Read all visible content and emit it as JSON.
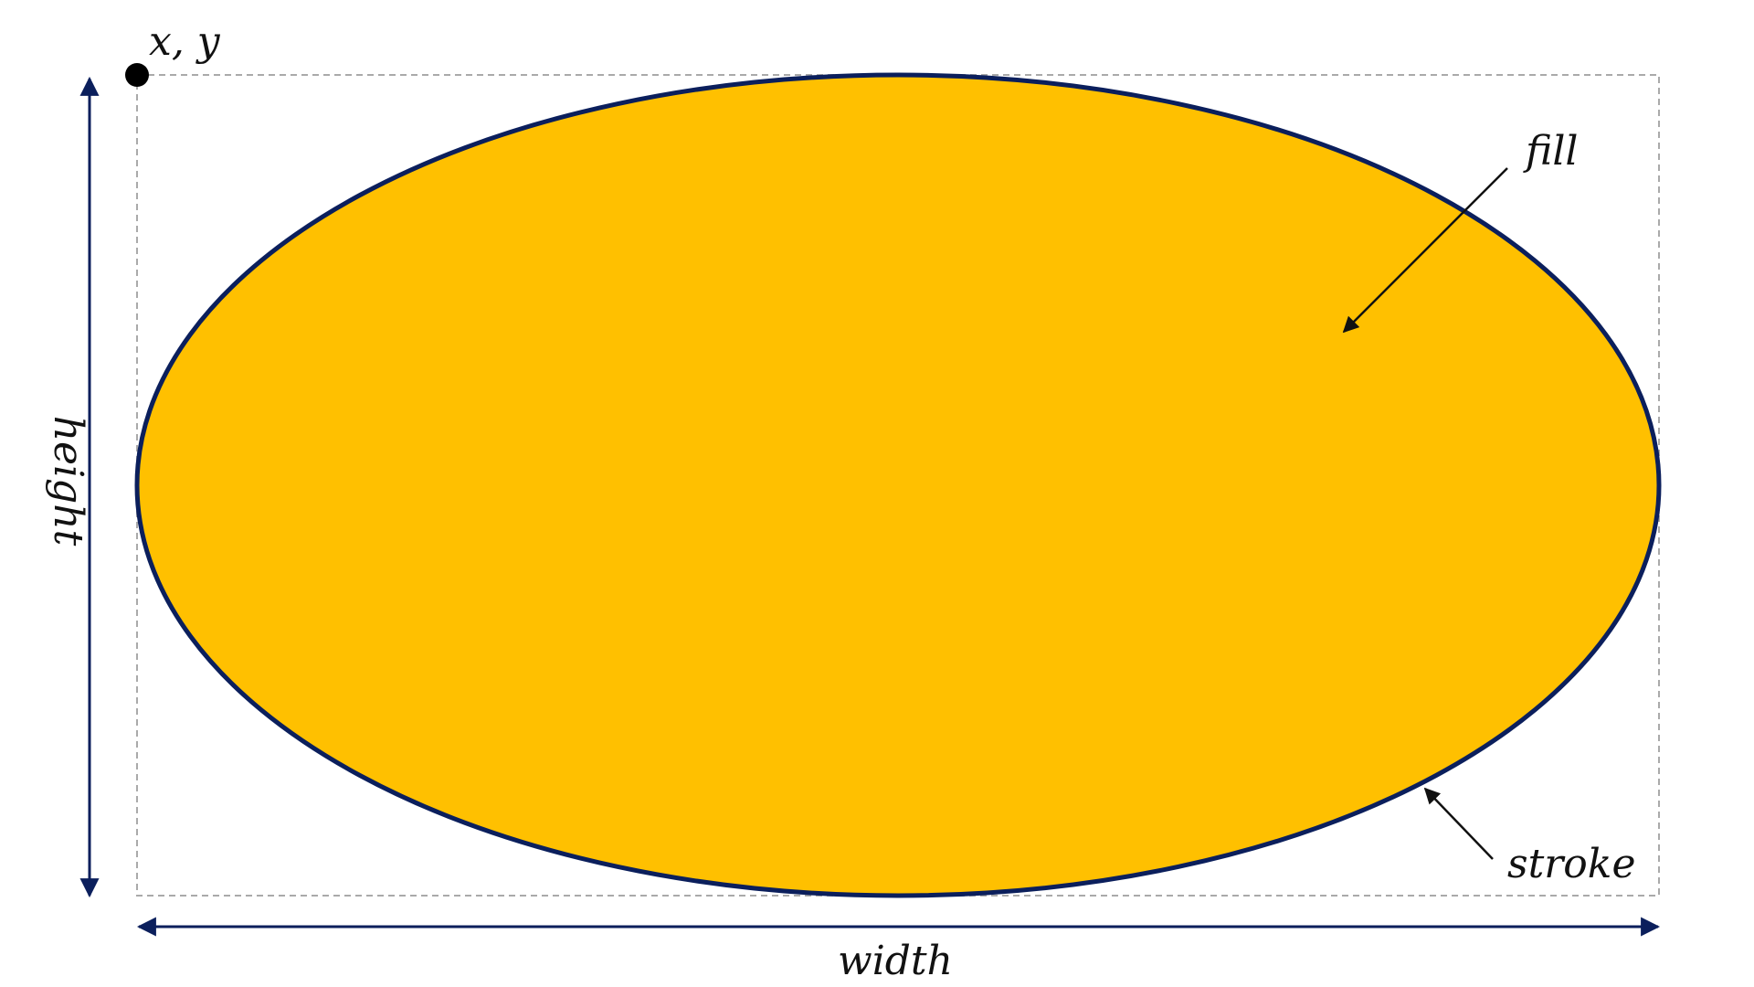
{
  "labels": {
    "origin": "x, y",
    "fill": "fill",
    "stroke": "stroke",
    "width": "width",
    "height": "height"
  },
  "colors": {
    "fill": "#FFC000",
    "stroke": "#0B1F5C",
    "arrows": "#0B1F5C",
    "bounding_box": "#AAAAAA",
    "callout_arrows": "#111111",
    "origin_dot": "#000000"
  },
  "icons": {
    "origin_marker": "filled-circle"
  }
}
